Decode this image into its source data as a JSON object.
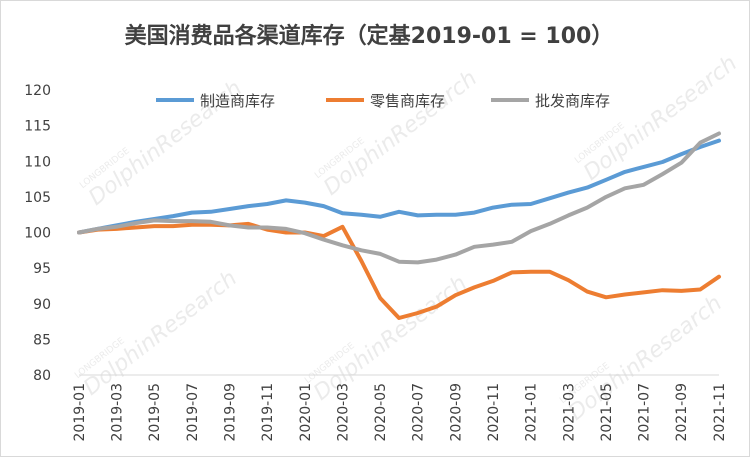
{
  "chart_data": {
    "type": "line",
    "title": "美国消费品各渠道库存（定基2019-01 = 100）",
    "xlabel": "",
    "ylabel": "",
    "ylim": [
      80,
      120
    ],
    "yticks": [
      80,
      85,
      90,
      95,
      100,
      105,
      110,
      115,
      120
    ],
    "grid": false,
    "legend_position": "top",
    "x": [
      "2019-01",
      "2019-02",
      "2019-03",
      "2019-04",
      "2019-05",
      "2019-06",
      "2019-07",
      "2019-08",
      "2019-09",
      "2019-10",
      "2019-11",
      "2019-12",
      "2020-01",
      "2020-02",
      "2020-03",
      "2020-04",
      "2020-05",
      "2020-06",
      "2020-07",
      "2020-08",
      "2020-09",
      "2020-10",
      "2020-11",
      "2020-12",
      "2021-01",
      "2021-02",
      "2021-03",
      "2021-04",
      "2021-05",
      "2021-06",
      "2021-07",
      "2021-08",
      "2021-09",
      "2021-10",
      "2021-11"
    ],
    "x_tick_labels": [
      "2019-01",
      "2019-03",
      "2019-05",
      "2019-07",
      "2019-09",
      "2019-11",
      "2020-01",
      "2020-03",
      "2020-05",
      "2020-07",
      "2020-09",
      "2020-11",
      "2021-01",
      "2021-03",
      "2021-05",
      "2021-07",
      "2021-09",
      "2021-11"
    ],
    "series": [
      {
        "name": "制造商库存",
        "color": "#5b9bd5",
        "values": [
          100.0,
          100.5,
          101.0,
          101.5,
          101.9,
          102.3,
          102.8,
          102.9,
          103.3,
          103.7,
          104.0,
          104.5,
          104.2,
          103.7,
          102.7,
          102.5,
          102.2,
          102.9,
          102.4,
          102.5,
          102.5,
          102.8,
          103.5,
          103.9,
          104.0,
          104.8,
          105.6,
          106.3,
          107.4,
          108.5,
          109.2,
          109.9,
          111.0,
          112.0,
          112.9
        ]
      },
      {
        "name": "零售商库存",
        "color": "#ed7d31",
        "values": [
          100.0,
          100.4,
          100.5,
          100.7,
          100.9,
          100.9,
          101.1,
          101.1,
          101.0,
          101.2,
          100.4,
          100.0,
          100.0,
          99.5,
          100.8,
          96.0,
          90.8,
          88.0,
          88.7,
          89.6,
          91.2,
          92.3,
          93.2,
          94.4,
          94.5,
          94.5,
          93.3,
          91.7,
          90.9,
          91.3,
          91.6,
          91.9,
          91.8,
          92.0,
          93.8
        ]
      },
      {
        "name": "批发商库存",
        "color": "#a5a5a5",
        "values": [
          100.0,
          100.5,
          100.8,
          101.3,
          101.7,
          101.6,
          101.6,
          101.5,
          101.0,
          100.7,
          100.7,
          100.5,
          99.9,
          99.0,
          98.2,
          97.5,
          97.0,
          95.9,
          95.8,
          96.2,
          96.9,
          98.0,
          98.3,
          98.7,
          100.2,
          101.2,
          102.4,
          103.5,
          105.0,
          106.2,
          106.7,
          108.2,
          109.8,
          112.6,
          113.9
        ]
      }
    ]
  },
  "watermark": {
    "brand": "LONGBRIDGE",
    "name": "DolphinResearch"
  }
}
